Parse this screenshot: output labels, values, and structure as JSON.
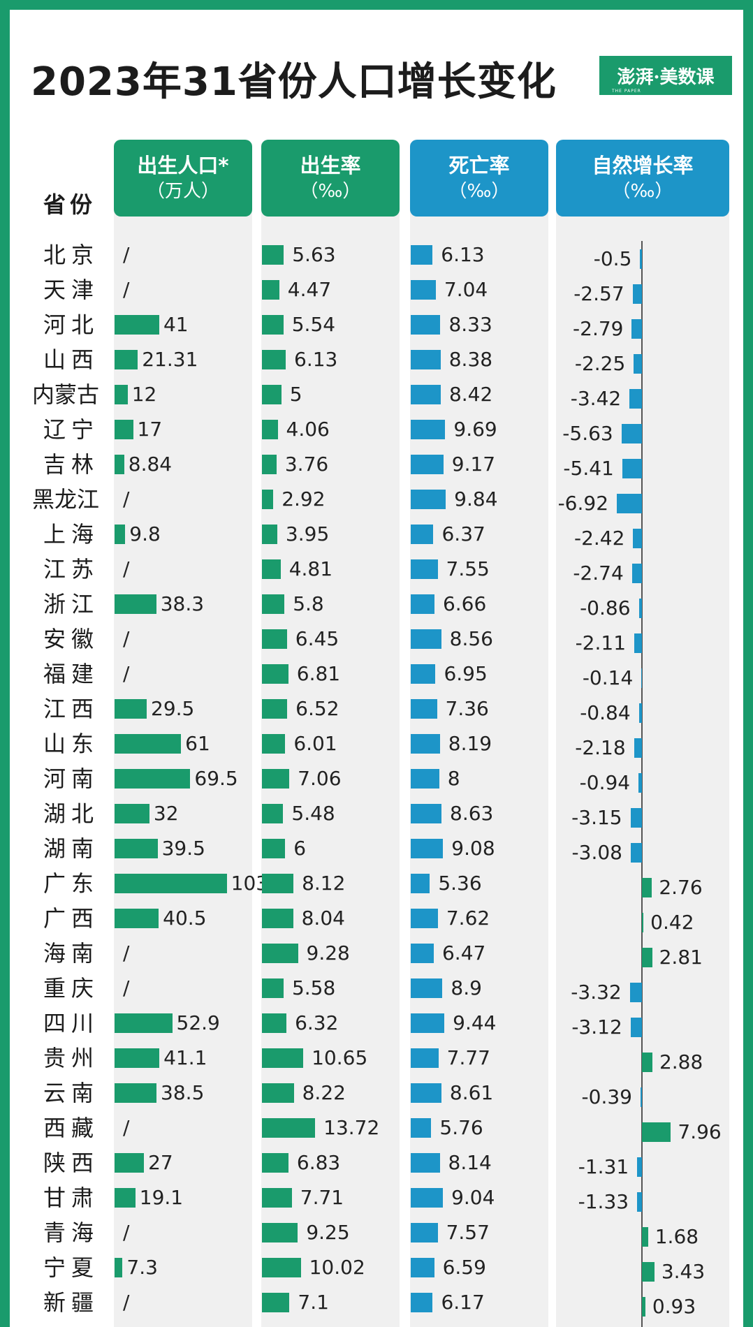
{
  "title": "2023年31省份人口增长变化",
  "logo": {
    "name": "澎湃·美数课",
    "sub": "THE PAPER"
  },
  "colors": {
    "green": "#1a9b6c",
    "blue": "#1d95c8"
  },
  "headers": {
    "province": "省份",
    "births": {
      "title": "出生人口*",
      "unit": "（万人）"
    },
    "birth_rate": {
      "title": "出生率",
      "unit": "（‰）"
    },
    "death_rate": {
      "title": "死亡率",
      "unit": "（‰）"
    },
    "natural_growth": {
      "title": "自然增长率",
      "unit": "（‰）"
    }
  },
  "chart_data": {
    "type": "bar",
    "title": "2023年31省份人口增长变化",
    "categories": [
      "北京",
      "天津",
      "河北",
      "山西",
      "内蒙古",
      "辽宁",
      "吉林",
      "黑龙江",
      "上海",
      "江苏",
      "浙江",
      "安徽",
      "福建",
      "江西",
      "山东",
      "河南",
      "湖北",
      "湖南",
      "广东",
      "广西",
      "海南",
      "重庆",
      "四川",
      "贵州",
      "云南",
      "西藏",
      "陕西",
      "甘肃",
      "青海",
      "宁夏",
      "新疆"
    ],
    "series": [
      {
        "name": "出生人口*（万人）",
        "values": [
          null,
          null,
          41,
          21.31,
          12,
          17,
          8.84,
          null,
          9.8,
          null,
          38.3,
          null,
          null,
          29.5,
          61,
          69.5,
          32,
          39.5,
          103,
          40.5,
          null,
          null,
          52.9,
          41.1,
          38.5,
          null,
          27,
          19.1,
          null,
          7.3,
          null
        ],
        "missing_label": "/"
      },
      {
        "name": "出生率（‰）",
        "values": [
          5.63,
          4.47,
          5.54,
          6.13,
          5,
          4.06,
          3.76,
          2.92,
          3.95,
          4.81,
          5.8,
          6.45,
          6.81,
          6.52,
          6.01,
          7.06,
          5.48,
          6,
          8.12,
          8.04,
          9.28,
          5.58,
          6.32,
          10.65,
          8.22,
          13.72,
          6.83,
          7.71,
          9.25,
          10.02,
          7.1
        ]
      },
      {
        "name": "死亡率（‰）",
        "values": [
          6.13,
          7.04,
          8.33,
          8.38,
          8.42,
          9.69,
          9.17,
          9.84,
          6.37,
          7.55,
          6.66,
          8.56,
          6.95,
          7.36,
          8.19,
          8,
          8.63,
          9.08,
          5.36,
          7.62,
          6.47,
          8.9,
          9.44,
          7.77,
          8.61,
          5.76,
          8.14,
          9.04,
          7.57,
          6.59,
          6.17
        ]
      },
      {
        "name": "自然增长率（‰）",
        "values": [
          -0.5,
          -2.57,
          -2.79,
          -2.25,
          -3.42,
          -5.63,
          -5.41,
          -6.92,
          -2.42,
          -2.74,
          -0.86,
          -2.11,
          -0.14,
          -0.84,
          -2.18,
          -0.94,
          -3.15,
          -3.08,
          2.76,
          0.42,
          2.81,
          -3.32,
          -3.12,
          2.88,
          -0.39,
          7.96,
          -1.31,
          -1.33,
          1.68,
          3.43,
          0.93
        ]
      }
    ]
  }
}
